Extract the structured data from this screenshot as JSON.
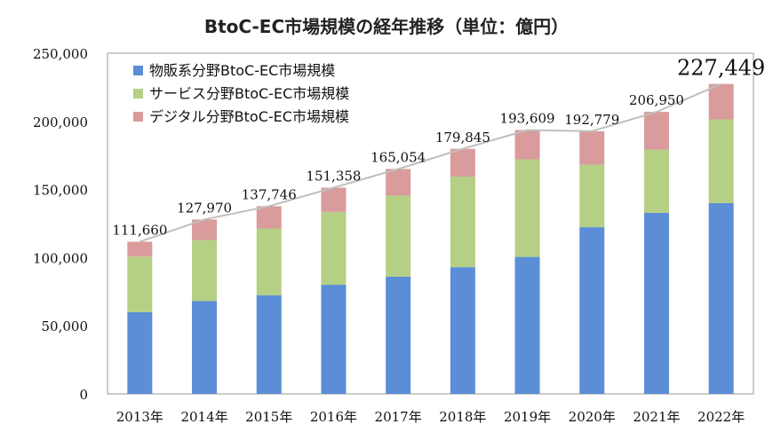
{
  "chart_data": {
    "type": "bar",
    "stacked": true,
    "title": "BtoC-EC市場規模の経年推移（単位：億円）",
    "xlabel": "",
    "ylabel": "",
    "ylim": [
      0,
      250000
    ],
    "yticks": [
      "0",
      "50,000",
      "100,000",
      "150,000",
      "200,000",
      "250,000"
    ],
    "categories": [
      "2013年",
      "2014年",
      "2015年",
      "2016年",
      "2017年",
      "2018年",
      "2019年",
      "2020年",
      "2021年",
      "2022年"
    ],
    "series": [
      {
        "name": "物販系分野BtoC-EC市場規模",
        "color": "#5b8ed6",
        "values": [
          59931,
          68042,
          72398,
          80043,
          86008,
          92992,
          100515,
          122333,
          132865,
          139997
        ]
      },
      {
        "name": "サービス分野BtoC-EC市場規模",
        "color": "#b5cf85",
        "values": [
          40813,
          44816,
          49014,
          53532,
          59568,
          66471,
          71672,
          45832,
          46424,
          61477
        ]
      },
      {
        "name": "デジタル分野BtoC-EC市場規模",
        "color": "#d99b9b",
        "values": [
          10916,
          15112,
          16334,
          17782,
          19478,
          20382,
          21422,
          24614,
          27661,
          25975
        ]
      }
    ],
    "totals": [
      111660,
      127970,
      137746,
      151358,
      165054,
      179845,
      193609,
      192779,
      206950,
      227449
    ],
    "total_labels": [
      "111,660",
      "127,970",
      "137,746",
      "151,358",
      "165,054",
      "179,845",
      "193,609",
      "192,779",
      "206,950",
      "227,449"
    ],
    "total_line_color": "#bfbfbf",
    "grid": false,
    "legend_position": "top-left"
  }
}
